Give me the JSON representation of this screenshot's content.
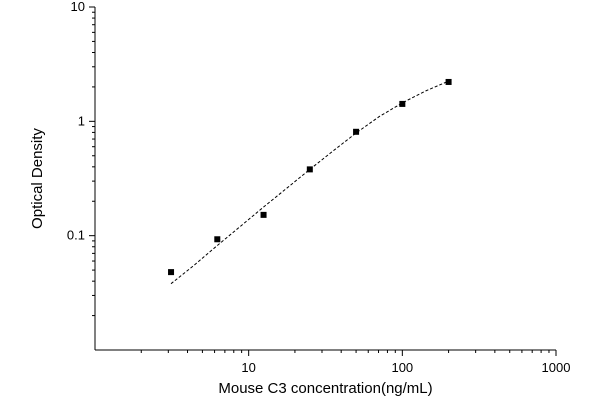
{
  "chart_data": {
    "type": "scatter",
    "title": "",
    "xlabel": "Mouse C3 concentration(ng/mL)",
    "ylabel": "Optical Density",
    "x_scale": "log",
    "y_scale": "log",
    "xlim": [
      1,
      1000
    ],
    "ylim": [
      0.01,
      10
    ],
    "x_ticks": [
      {
        "value": 10,
        "label": "10"
      },
      {
        "value": 100,
        "label": "100"
      },
      {
        "value": 1000,
        "label": "1000"
      }
    ],
    "y_ticks": [
      {
        "value": 0.1,
        "label": "0.1"
      },
      {
        "value": 1,
        "label": "1"
      },
      {
        "value": 10,
        "label": "10"
      }
    ],
    "grid": false,
    "legend": "none",
    "series": [
      {
        "kind": "points",
        "marker": "square",
        "color": "#000000",
        "x": [
          3.125,
          6.25,
          12.5,
          25,
          50,
          100,
          200
        ],
        "y": [
          0.048,
          0.093,
          0.152,
          0.38,
          0.81,
          1.42,
          2.21
        ]
      },
      {
        "kind": "fitted-curve",
        "line_style": "dashed",
        "color": "#000000",
        "x": [
          3.125,
          4.4,
          6.25,
          8.8,
          12.5,
          17.7,
          25,
          35.4,
          50,
          70.7,
          100,
          141,
          200
        ],
        "y": [
          0.038,
          0.055,
          0.082,
          0.12,
          0.178,
          0.26,
          0.38,
          0.55,
          0.79,
          1.1,
          1.45,
          1.84,
          2.25
        ]
      }
    ]
  }
}
